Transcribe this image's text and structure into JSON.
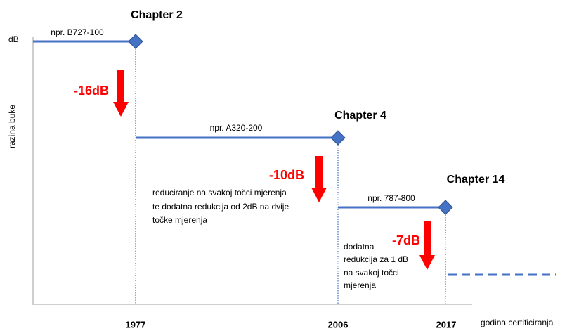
{
  "axis": {
    "y_label": "razina buke",
    "y_unit": "dB",
    "x_label": "godina certificiranja"
  },
  "steps": [
    {
      "chapter": "Chapter 2",
      "example": "npr. B727-100",
      "year": "1977",
      "reduction": "-16dB"
    },
    {
      "chapter": "Chapter 4",
      "example": "npr. A320-200",
      "year": "2006",
      "reduction": "-10dB",
      "note": [
        "reduciranje na svakoj točci mjerenja",
        "te dodatna redukcija od 2dB na dvije",
        "točke mjerenja"
      ]
    },
    {
      "chapter": "Chapter 14",
      "example": "npr. 787-800",
      "year": "2017",
      "reduction": "-7dB",
      "note": [
        "dodatna",
        "redukcija za 1 dB",
        "na svakoj točci",
        "mjerenja"
      ]
    }
  ]
}
